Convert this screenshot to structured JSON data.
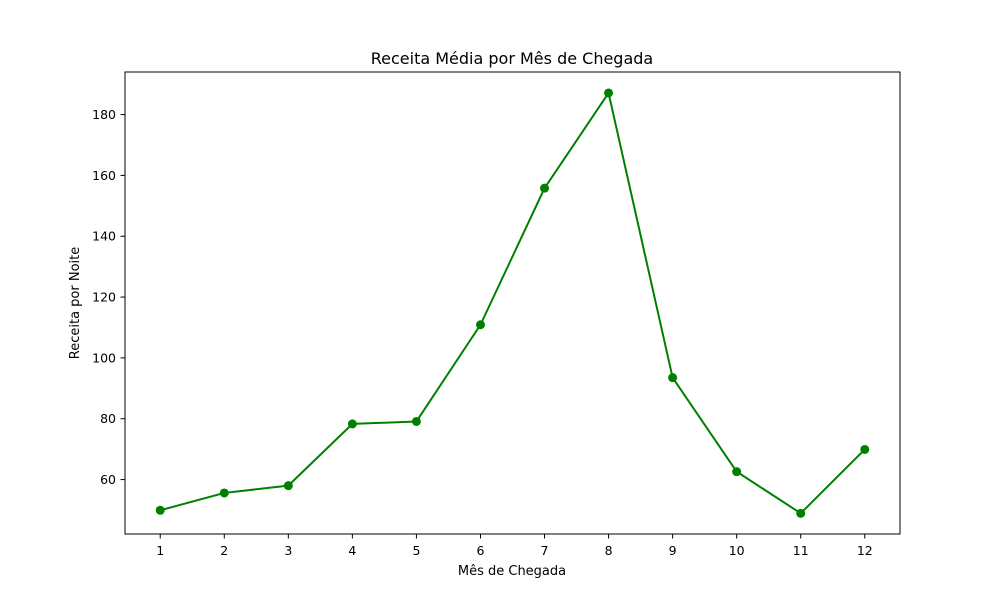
{
  "chart_data": {
    "type": "line",
    "title": "Receita Média por Mês de Chegada",
    "xlabel": "Mês de Chegada",
    "ylabel": "Receita por Noite",
    "x": [
      1,
      2,
      3,
      4,
      5,
      6,
      7,
      8,
      9,
      10,
      11,
      12
    ],
    "x_tick_labels": [
      "1",
      "2",
      "3",
      "4",
      "5",
      "6",
      "7",
      "8",
      "9",
      "10",
      "11",
      "12"
    ],
    "series": [
      {
        "values": [
          49.9,
          55.6,
          58.0,
          78.3,
          79.1,
          110.9,
          155.8,
          187.1,
          93.5,
          62.6,
          48.9,
          69.9
        ],
        "color": "#008000",
        "marker": "circle"
      }
    ],
    "xlim": [
      0.45,
      12.55
    ],
    "ylim": [
      42.1,
      194.0
    ],
    "y_ticks": [
      60,
      80,
      100,
      120,
      140,
      160,
      180
    ],
    "y_tick_labels": [
      "60",
      "80",
      "100",
      "120",
      "140",
      "160",
      "180"
    ],
    "grid": false,
    "legend": "none"
  }
}
